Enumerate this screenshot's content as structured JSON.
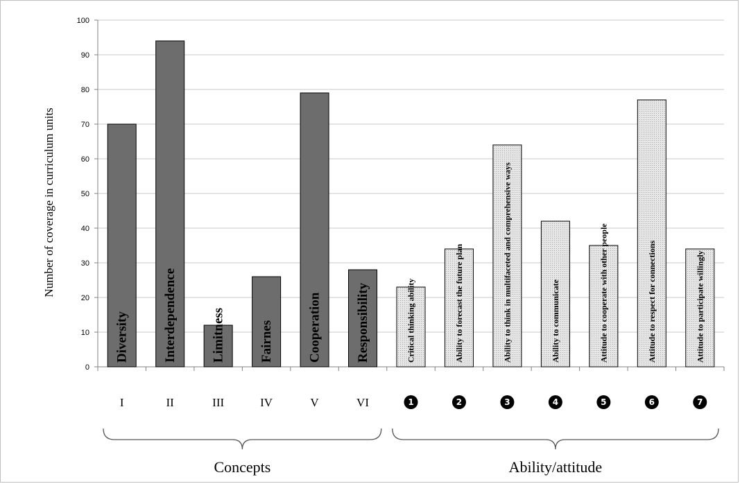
{
  "chart_data": {
    "type": "bar",
    "ylabel": "Number of coverage in curriculum units",
    "ylim": [
      0,
      100
    ],
    "yticks": [
      0,
      10,
      20,
      30,
      40,
      50,
      60,
      70,
      80,
      90,
      100
    ],
    "grid": true,
    "categories": [
      "I",
      "II",
      "III",
      "IV",
      "V",
      "VI",
      "❶",
      "❷",
      "❸",
      "❹",
      "❺",
      "❻",
      "❼"
    ],
    "groups": [
      {
        "label": "Concepts",
        "fill": "#6d6d6d",
        "items": [
          {
            "code": "I",
            "name": "Diversity",
            "value": 70
          },
          {
            "code": "II",
            "name": "Interdependence",
            "value": 94
          },
          {
            "code": "III",
            "name": "Limitness",
            "value": 12
          },
          {
            "code": "IV",
            "name": "Fairnes",
            "value": 26
          },
          {
            "code": "V",
            "name": "Cooperation",
            "value": 79
          },
          {
            "code": "VI",
            "name": "Responsibility",
            "value": 28
          }
        ]
      },
      {
        "label": "Ability/attitude",
        "fill": "#d9d9d9",
        "items": [
          {
            "code": "❶",
            "name": "Critical thinking ability",
            "value": 23
          },
          {
            "code": "❷",
            "name": "Ability to forecast the future plan",
            "value": 34
          },
          {
            "code": "❸",
            "name": "Ability to think in multifaceted and comprehensive ways",
            "value": 64
          },
          {
            "code": "❹",
            "name": "Ability to communicate",
            "value": 42
          },
          {
            "code": "❺",
            "name": "Attitude to cooperate with other people",
            "value": 35
          },
          {
            "code": "❻",
            "name": "Attitude to respect for connections",
            "value": 77
          },
          {
            "code": "❼",
            "name": "Attitude to participate willingly",
            "value": 34
          }
        ]
      }
    ],
    "colors": {
      "concept_bar": "#6d6d6d",
      "ability_bar": "#d9d9d9",
      "bar_stroke": "#000000",
      "grid": "#c8c8c8"
    }
  }
}
